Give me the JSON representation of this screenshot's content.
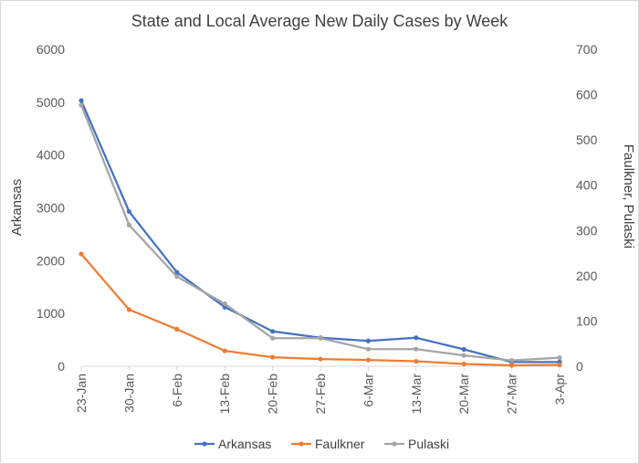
{
  "chart_data": {
    "type": "line",
    "title": "State and Local Average New Daily Cases by Week",
    "categories": [
      "23-Jan",
      "30-Jan",
      "6-Feb",
      "13-Feb",
      "20-Feb",
      "27-Feb",
      "6-Mar",
      "13-Mar",
      "20-Mar",
      "27-Mar",
      "3-Apr"
    ],
    "ylabel_left": "Arkansas",
    "ylabel_right": "Faulkner, Pulaski",
    "ylim_left": [
      0,
      6000
    ],
    "ylim_right": [
      0,
      700
    ],
    "yticks_left": [
      0,
      1000,
      2000,
      3000,
      4000,
      5000,
      6000
    ],
    "yticks_right": [
      0,
      100,
      200,
      300,
      400,
      500,
      600,
      700
    ],
    "grid": false,
    "legend": "bottom",
    "series": [
      {
        "name": "Arkansas",
        "axis": "left",
        "color": "#4472c4",
        "values": [
          5030,
          2930,
          1780,
          1120,
          660,
          540,
          480,
          540,
          320,
          80,
          80
        ]
      },
      {
        "name": "Faulkner",
        "axis": "right",
        "color": "#ed7d31",
        "values": [
          248,
          125,
          82,
          34,
          20,
          16,
          14,
          11,
          5,
          2,
          3
        ]
      },
      {
        "name": "Pulaski",
        "axis": "right",
        "color": "#a5a5a5",
        "values": [
          577,
          312,
          198,
          138,
          62,
          62,
          38,
          38,
          24,
          13,
          19
        ]
      }
    ]
  }
}
